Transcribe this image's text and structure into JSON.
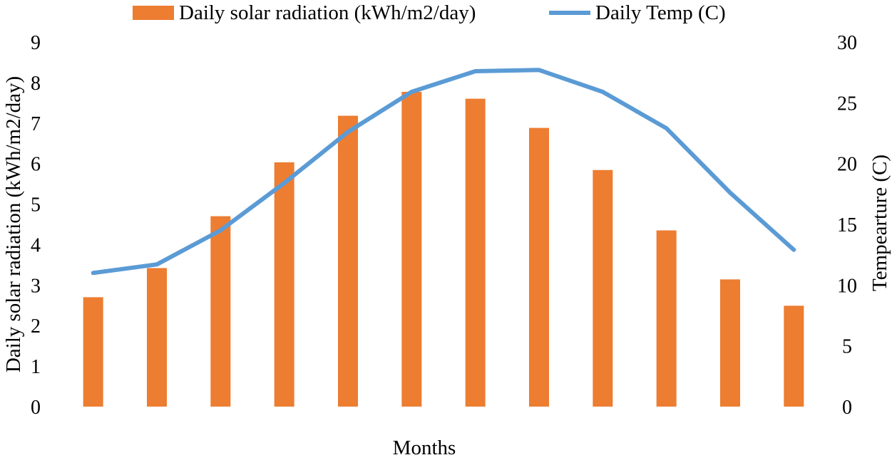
{
  "chart_data": {
    "type": "bar",
    "categories": [
      "",
      "",
      "",
      "",
      "",
      "",
      "",
      "",
      "",
      "",
      "",
      ""
    ],
    "xlabel": "Months",
    "series": [
      {
        "name": "Daily solar radiation (kWh/m2/day)",
        "type": "bar",
        "axis": "left",
        "color": "#ED7D31",
        "values": [
          2.7,
          3.42,
          4.7,
          6.03,
          7.18,
          7.77,
          7.6,
          6.88,
          5.84,
          4.35,
          3.14,
          2.49
        ]
      },
      {
        "name": "Daily Temp (C)",
        "type": "line",
        "axis": "right",
        "color": "#5B9BD5",
        "values": [
          11.0,
          11.7,
          14.5,
          18.4,
          22.6,
          25.9,
          27.6,
          27.7,
          25.9,
          22.9,
          17.6,
          12.9
        ]
      }
    ],
    "y_left": {
      "label": "Daily solar radiation (kWh/m2/day)",
      "range": [
        0,
        9
      ],
      "ticks": [
        "0",
        "1",
        "2",
        "3",
        "4",
        "5",
        "6",
        "7",
        "8",
        "9"
      ]
    },
    "y_right": {
      "label": "Tempearture (C)",
      "range": [
        0,
        30
      ],
      "ticks": [
        "0",
        "5",
        "10",
        "15",
        "20",
        "25",
        "30"
      ]
    },
    "grid": false,
    "legend_position": "top"
  }
}
